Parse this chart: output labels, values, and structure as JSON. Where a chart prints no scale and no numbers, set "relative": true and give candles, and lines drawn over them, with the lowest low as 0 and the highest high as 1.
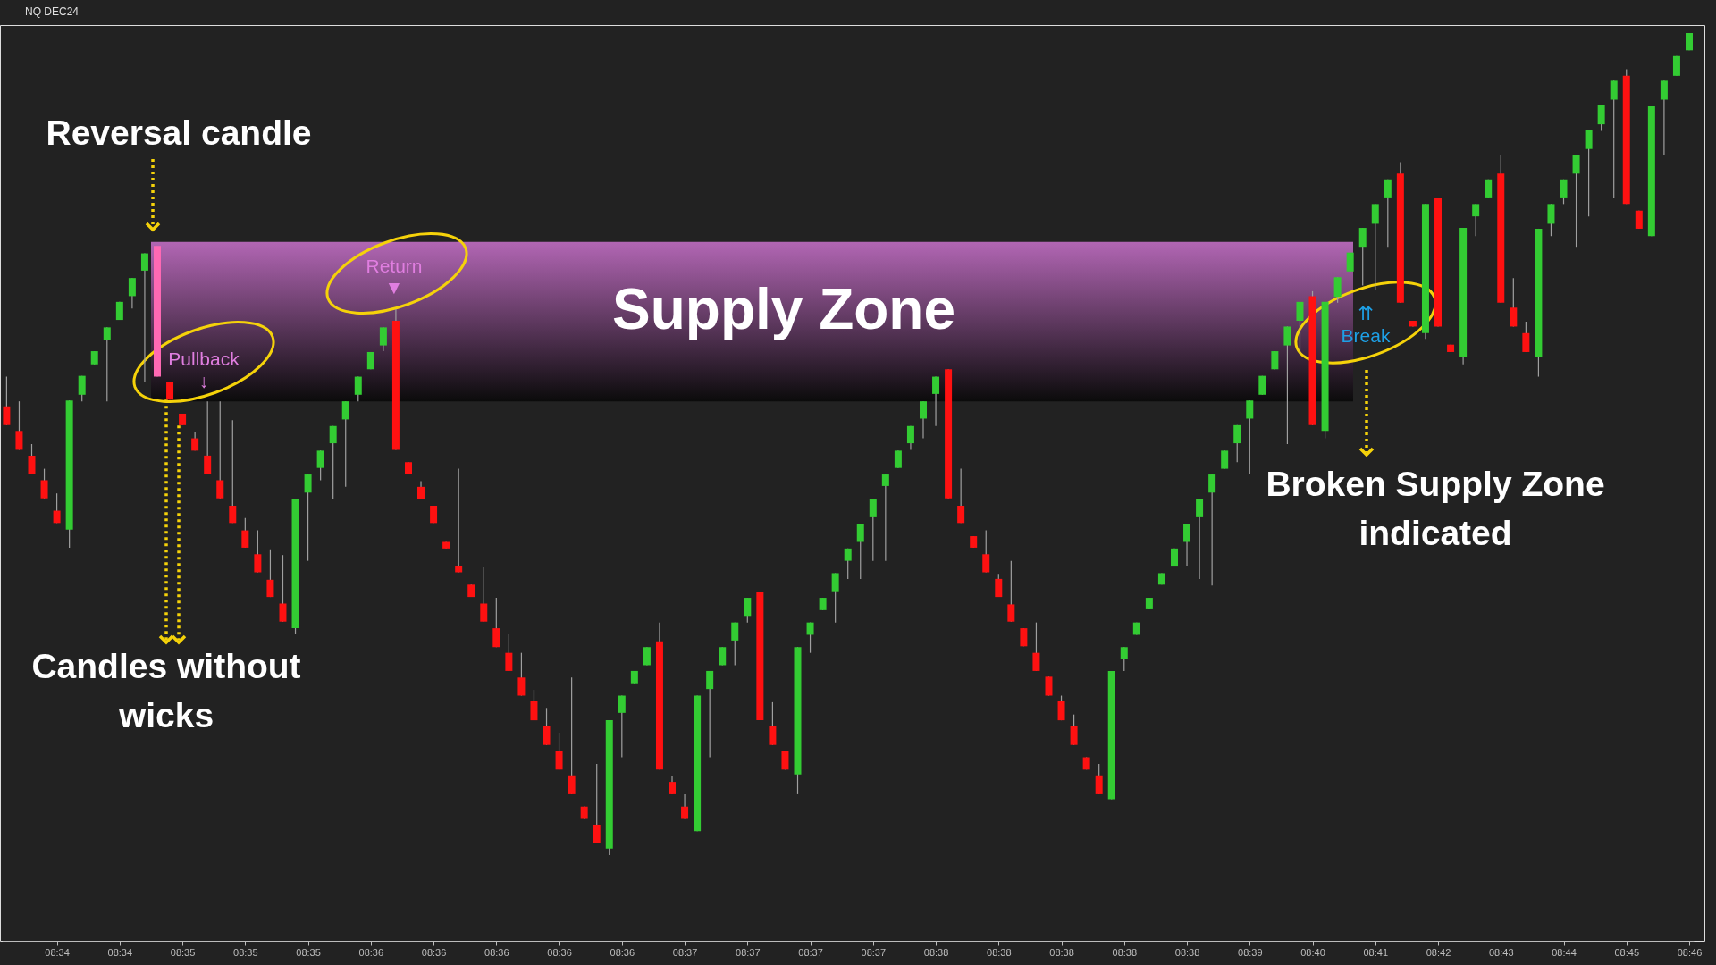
{
  "chart_data": {
    "type": "candlestick",
    "title": "NQ DEC24",
    "relative": true,
    "categories": [
      null,
      null,
      null,
      null,
      "08:34",
      null,
      null,
      null,
      null,
      "08:34",
      null,
      null,
      null,
      null,
      "08:35",
      null,
      null,
      null,
      null,
      "08:35",
      null,
      null,
      null,
      null,
      "08:35",
      null,
      null,
      null,
      null,
      "08:36",
      null,
      null,
      null,
      null,
      "08:36",
      null,
      null,
      null,
      null,
      "08:36",
      null,
      null,
      null,
      null,
      "08:36",
      null,
      null,
      null,
      null,
      "08:36",
      null,
      null,
      null,
      null,
      "08:37",
      null,
      null,
      null,
      null,
      "08:37",
      null,
      null,
      null,
      null,
      "08:37",
      null,
      null,
      null,
      null,
      "08:37",
      null,
      null,
      null,
      null,
      "08:38",
      null,
      null,
      null,
      null,
      "08:38",
      null,
      null,
      null,
      null,
      "08:38",
      null,
      null,
      null,
      null,
      "08:38",
      null,
      null,
      null,
      null,
      "08:38",
      null,
      null,
      null,
      null,
      "08:39",
      null,
      null,
      null,
      null,
      "08:40",
      null,
      null,
      null,
      null,
      "08:41",
      null,
      null,
      null,
      null,
      "08:42",
      null,
      null,
      null,
      null,
      "08:43",
      null,
      null,
      null,
      null,
      "08:44",
      null,
      null,
      null,
      null,
      "08:45",
      null,
      null,
      null,
      null,
      "08:46"
    ],
    "ohlc": [
      [
        0.546,
        0.582,
        0.523,
        0.523
      ],
      [
        0.516,
        0.552,
        0.493,
        0.493
      ],
      [
        0.486,
        0.5,
        0.464,
        0.464
      ],
      [
        0.456,
        0.47,
        0.434,
        0.434
      ],
      [
        0.419,
        0.44,
        0.404,
        0.404
      ],
      [
        0.396,
        0.553,
        0.374,
        0.553
      ],
      [
        0.56,
        0.583,
        0.552,
        0.583
      ],
      [
        0.597,
        0.613,
        0.597,
        0.613
      ],
      [
        0.627,
        0.642,
        0.552,
        0.642
      ],
      [
        0.651,
        0.673,
        0.651,
        0.673
      ],
      [
        0.68,
        0.702,
        0.665,
        0.702
      ],
      [
        0.711,
        0.732,
        0.576,
        0.732
      ],
      [
        0.741,
        0.741,
        0.582,
        0.582
      ],
      [
        0.576,
        0.576,
        0.554,
        0.554
      ],
      [
        0.537,
        0.537,
        0.523,
        0.523
      ],
      [
        0.507,
        0.514,
        0.492,
        0.492
      ],
      [
        0.486,
        0.552,
        0.464,
        0.464
      ],
      [
        0.456,
        0.552,
        0.434,
        0.434
      ],
      [
        0.425,
        0.529,
        0.404,
        0.404
      ],
      [
        0.395,
        0.41,
        0.374,
        0.374
      ],
      [
        0.366,
        0.395,
        0.344,
        0.344
      ],
      [
        0.335,
        0.372,
        0.314,
        0.314
      ],
      [
        0.306,
        0.365,
        0.284,
        0.284
      ],
      [
        0.276,
        0.433,
        0.269,
        0.433
      ],
      [
        0.441,
        0.463,
        0.358,
        0.463
      ],
      [
        0.471,
        0.492,
        0.456,
        0.492
      ],
      [
        0.501,
        0.522,
        0.433,
        0.522
      ],
      [
        0.53,
        0.552,
        0.448,
        0.552
      ],
      [
        0.56,
        0.582,
        0.552,
        0.582
      ],
      [
        0.591,
        0.612,
        0.591,
        0.612
      ],
      [
        0.62,
        0.642,
        0.613,
        0.642
      ],
      [
        0.65,
        0.664,
        0.493,
        0.493
      ],
      [
        0.478,
        0.478,
        0.464,
        0.464
      ],
      [
        0.448,
        0.455,
        0.433,
        0.433
      ],
      [
        0.425,
        0.425,
        0.404,
        0.404
      ],
      [
        0.381,
        0.381,
        0.373,
        0.373
      ],
      [
        0.351,
        0.47,
        0.344,
        0.344
      ],
      [
        0.329,
        0.329,
        0.314,
        0.314
      ],
      [
        0.306,
        0.35,
        0.284,
        0.284
      ],
      [
        0.276,
        0.313,
        0.253,
        0.253
      ],
      [
        0.246,
        0.269,
        0.224,
        0.224
      ],
      [
        0.216,
        0.246,
        0.194,
        0.194
      ],
      [
        0.187,
        0.201,
        0.164,
        0.164
      ],
      [
        0.157,
        0.179,
        0.134,
        0.134
      ],
      [
        0.127,
        0.149,
        0.104,
        0.104
      ],
      [
        0.097,
        0.216,
        0.074,
        0.074
      ],
      [
        0.059,
        0.059,
        0.044,
        0.044
      ],
      [
        0.037,
        0.111,
        0.015,
        0.015
      ],
      [
        0.008,
        0.164,
        0,
        0.164
      ],
      [
        0.173,
        0.194,
        0.119,
        0.194
      ],
      [
        0.209,
        0.224,
        0.209,
        0.224
      ],
      [
        0.231,
        0.253,
        0.231,
        0.253
      ],
      [
        0.26,
        0.283,
        0.104,
        0.104
      ],
      [
        0.089,
        0.096,
        0.074,
        0.074
      ],
      [
        0.059,
        0.074,
        0.044,
        0.044
      ],
      [
        0.029,
        0.194,
        0.029,
        0.194
      ],
      [
        0.202,
        0.224,
        0.119,
        0.224
      ],
      [
        0.231,
        0.253,
        0.231,
        0.253
      ],
      [
        0.261,
        0.283,
        0.231,
        0.283
      ],
      [
        0.291,
        0.313,
        0.283,
        0.313
      ],
      [
        0.32,
        0.32,
        0.164,
        0.164
      ],
      [
        0.157,
        0.186,
        0.134,
        0.134
      ],
      [
        0.127,
        0.127,
        0.104,
        0.104
      ],
      [
        0.098,
        0.253,
        0.074,
        0.253
      ],
      [
        0.268,
        0.283,
        0.246,
        0.283
      ],
      [
        0.298,
        0.313,
        0.298,
        0.313
      ],
      [
        0.321,
        0.343,
        0.283,
        0.343
      ],
      [
        0.358,
        0.373,
        0.336,
        0.373
      ],
      [
        0.381,
        0.403,
        0.336,
        0.403
      ],
      [
        0.411,
        0.433,
        0.358,
        0.433
      ],
      [
        0.449,
        0.463,
        0.358,
        0.463
      ],
      [
        0.471,
        0.492,
        0.471,
        0.492
      ],
      [
        0.501,
        0.522,
        0.493,
        0.522
      ],
      [
        0.531,
        0.552,
        0.507,
        0.552
      ],
      [
        0.561,
        0.582,
        0.522,
        0.582
      ],
      [
        0.591,
        0.591,
        0.434,
        0.434
      ],
      [
        0.425,
        0.47,
        0.404,
        0.404
      ],
      [
        0.388,
        0.388,
        0.374,
        0.374
      ],
      [
        0.366,
        0.395,
        0.344,
        0.344
      ],
      [
        0.336,
        0.342,
        0.314,
        0.314
      ],
      [
        0.305,
        0.358,
        0.284,
        0.284
      ],
      [
        0.276,
        0.276,
        0.254,
        0.254
      ],
      [
        0.246,
        0.283,
        0.224,
        0.224
      ],
      [
        0.217,
        0.217,
        0.194,
        0.194
      ],
      [
        0.187,
        0.194,
        0.164,
        0.164
      ],
      [
        0.157,
        0.171,
        0.134,
        0.134
      ],
      [
        0.119,
        0.119,
        0.104,
        0.104
      ],
      [
        0.097,
        0.111,
        0.074,
        0.074
      ],
      [
        0.068,
        0.224,
        0.068,
        0.224
      ],
      [
        0.239,
        0.253,
        0.224,
        0.253
      ],
      [
        0.268,
        0.283,
        0.268,
        0.283
      ],
      [
        0.299,
        0.313,
        0.299,
        0.313
      ],
      [
        0.329,
        0.343,
        0.329,
        0.343
      ],
      [
        0.351,
        0.373,
        0.351,
        0.373
      ],
      [
        0.381,
        0.403,
        0.351,
        0.403
      ],
      [
        0.411,
        0.433,
        0.336,
        0.433
      ],
      [
        0.441,
        0.463,
        0.328,
        0.463
      ],
      [
        0.47,
        0.492,
        0.47,
        0.492
      ],
      [
        0.501,
        0.523,
        0.478,
        0.523
      ],
      [
        0.531,
        0.553,
        0.464,
        0.553
      ],
      [
        0.56,
        0.583,
        0.56,
        0.583
      ],
      [
        0.591,
        0.613,
        0.591,
        0.613
      ],
      [
        0.62,
        0.643,
        0.5,
        0.643
      ],
      [
        0.65,
        0.673,
        0.609,
        0.673
      ],
      [
        0.68,
        0.686,
        0.523,
        0.523
      ],
      [
        0.516,
        0.673,
        0.507,
        0.673
      ],
      [
        0.679,
        0.703,
        0.672,
        0.703
      ],
      [
        0.71,
        0.733,
        0.71,
        0.733
      ],
      [
        0.74,
        0.763,
        0.693,
        0.763
      ],
      [
        0.768,
        0.792,
        0.687,
        0.792
      ],
      [
        0.799,
        0.822,
        0.74,
        0.822
      ],
      [
        0.829,
        0.843,
        0.672,
        0.672
      ],
      [
        0.65,
        0.65,
        0.643,
        0.643
      ],
      [
        0.635,
        0.792,
        0.628,
        0.792
      ],
      [
        0.799,
        0.799,
        0.643,
        0.643
      ],
      [
        0.621,
        0.621,
        0.612,
        0.612
      ],
      [
        0.606,
        0.763,
        0.597,
        0.763
      ],
      [
        0.777,
        0.792,
        0.753,
        0.792
      ],
      [
        0.799,
        0.822,
        0.799,
        0.822
      ],
      [
        0.829,
        0.851,
        0.672,
        0.672
      ],
      [
        0.666,
        0.702,
        0.643,
        0.643
      ],
      [
        0.635,
        0.649,
        0.612,
        0.612
      ],
      [
        0.606,
        0.762,
        0.582,
        0.762
      ],
      [
        0.768,
        0.792,
        0.753,
        0.792
      ],
      [
        0.799,
        0.822,
        0.792,
        0.822
      ],
      [
        0.829,
        0.852,
        0.74,
        0.852
      ],
      [
        0.859,
        0.882,
        0.777,
        0.882
      ],
      [
        0.889,
        0.912,
        0.881,
        0.912
      ],
      [
        0.919,
        0.942,
        0.799,
        0.942
      ],
      [
        0.948,
        0.956,
        0.792,
        0.792
      ],
      [
        0.784,
        0.784,
        0.762,
        0.762
      ],
      [
        0.753,
        0.911,
        0.753,
        0.911
      ],
      [
        0.919,
        0.942,
        0.852,
        0.942
      ],
      [
        0.948,
        0.972,
        0.948,
        0.972
      ],
      [
        0.979,
        1,
        0.979,
        1
      ]
    ],
    "colors": [
      "#ff1111",
      "#ff1111",
      "#ff1111",
      "#ff1111",
      "#ff1111",
      "#33cc33",
      "#33cc33",
      "#33cc33",
      "#33cc33",
      "#33cc33",
      "#33cc33",
      "#33cc33",
      "#ff69b4",
      "#ff1111",
      "#ff1111",
      "#ff1111",
      "#ff1111",
      "#ff1111",
      "#ff1111",
      "#ff1111",
      "#ff1111",
      "#ff1111",
      "#ff1111",
      "#33cc33",
      "#33cc33",
      "#33cc33",
      "#33cc33",
      "#33cc33",
      "#33cc33",
      "#33cc33",
      "#33cc33",
      "#ff1111",
      "#ff1111",
      "#ff1111",
      "#ff1111",
      "#ff1111",
      "#ff1111",
      "#ff1111",
      "#ff1111",
      "#ff1111",
      "#ff1111",
      "#ff1111",
      "#ff1111",
      "#ff1111",
      "#ff1111",
      "#ff1111",
      "#ff1111",
      "#ff1111",
      "#33cc33",
      "#33cc33",
      "#33cc33",
      "#33cc33",
      "#ff1111",
      "#ff1111",
      "#ff1111",
      "#33cc33",
      "#33cc33",
      "#33cc33",
      "#33cc33",
      "#33cc33",
      "#ff1111",
      "#ff1111",
      "#ff1111",
      "#33cc33",
      "#33cc33",
      "#33cc33",
      "#33cc33",
      "#33cc33",
      "#33cc33",
      "#33cc33",
      "#33cc33",
      "#33cc33",
      "#33cc33",
      "#33cc33",
      "#33cc33",
      "#ff1111",
      "#ff1111",
      "#ff1111",
      "#ff1111",
      "#ff1111",
      "#ff1111",
      "#ff1111",
      "#ff1111",
      "#ff1111",
      "#ff1111",
      "#ff1111",
      "#ff1111",
      "#ff1111",
      "#33cc33",
      "#33cc33",
      "#33cc33",
      "#33cc33",
      "#33cc33",
      "#33cc33",
      "#33cc33",
      "#33cc33",
      "#33cc33",
      "#33cc33",
      "#33cc33",
      "#33cc33",
      "#33cc33",
      "#33cc33",
      "#33cc33",
      "#33cc33",
      "#ff1111",
      "#33cc33",
      "#33cc33",
      "#33cc33",
      "#33cc33",
      "#33cc33",
      "#33cc33",
      "#ff1111",
      "#ff1111",
      "#33cc33",
      "#ff1111",
      "#ff1111",
      "#33cc33",
      "#33cc33",
      "#33cc33",
      "#ff1111",
      "#ff1111",
      "#ff1111",
      "#33cc33",
      "#33cc33",
      "#33cc33",
      "#33cc33",
      "#33cc33",
      "#33cc33",
      "#33cc33",
      "#ff1111",
      "#ff1111",
      "#33cc33",
      "#33cc33",
      "#33cc33",
      "#33cc33"
    ],
    "bands": [
      {
        "axis": "y",
        "from": 0.552,
        "to": 0.746,
        "label": "Supply Zone",
        "color": "#b266b4"
      }
    ],
    "annotations": [
      "Reversal candle",
      "Pullback ↓",
      "Return ▼",
      "⇈ Break",
      {
        "text": "Candles without wicks",
        "y": 0.554
      },
      "Broken Supply Zone indicated"
    ]
  }
}
